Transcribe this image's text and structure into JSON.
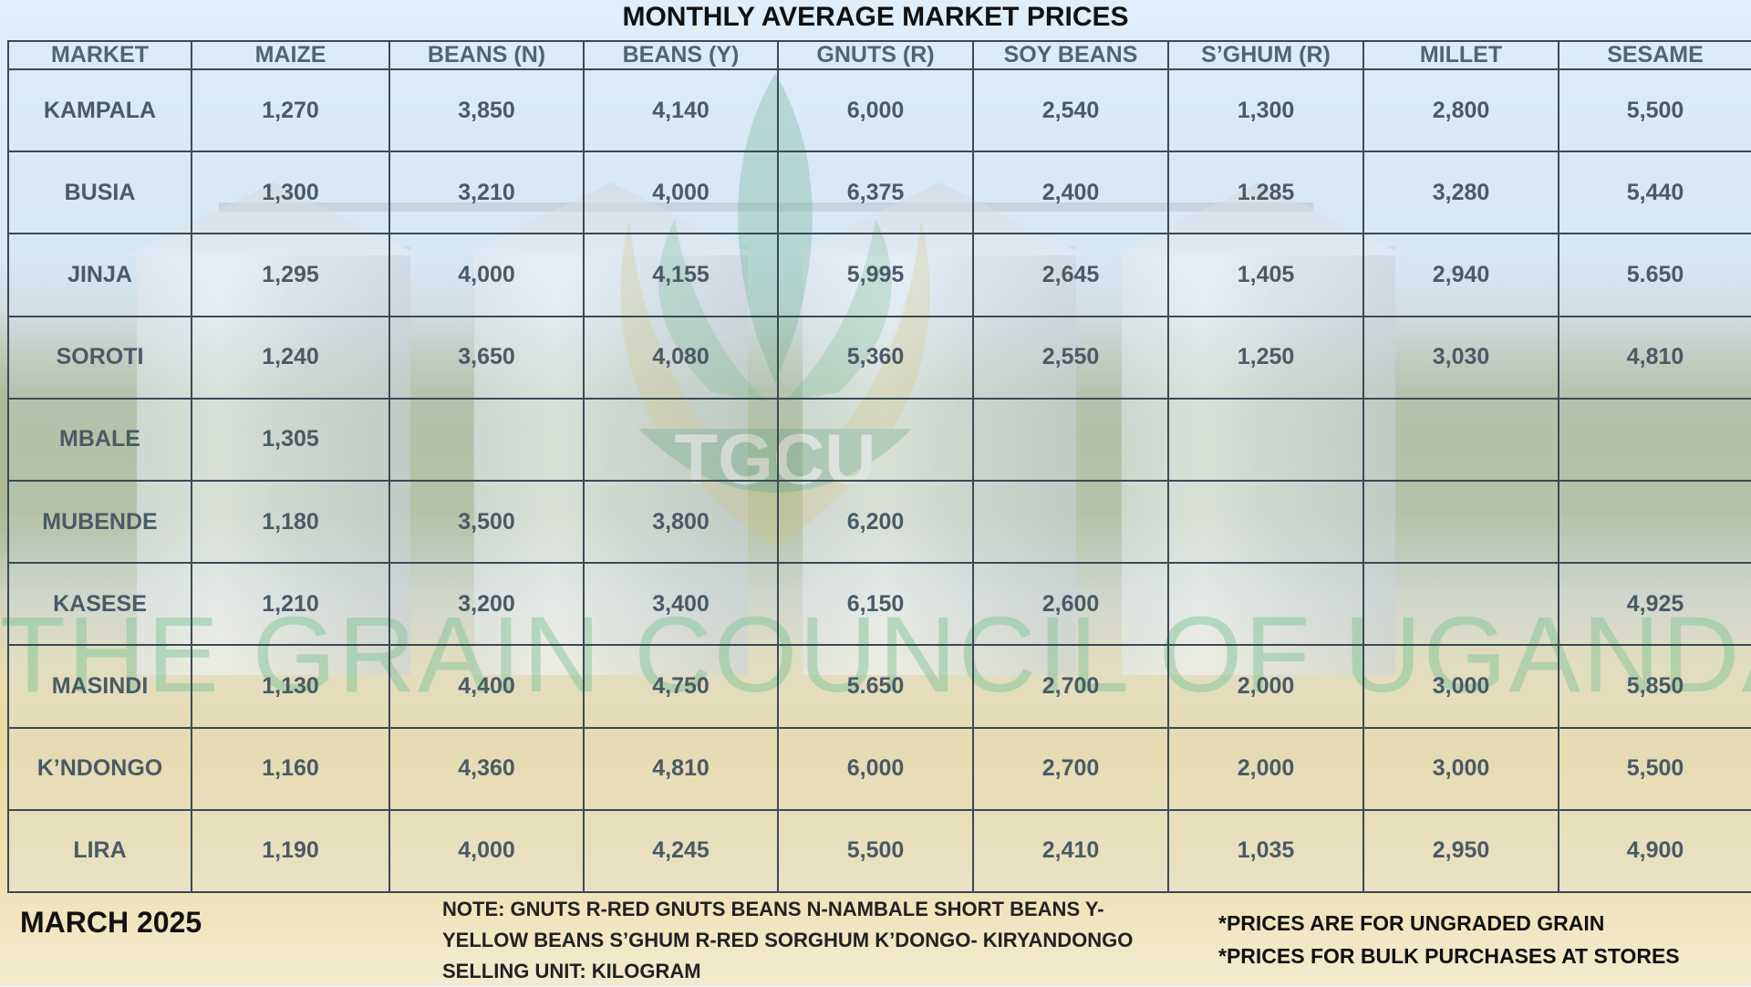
{
  "title": "MONTHLY AVERAGE MARKET PRICES",
  "emblem_text": "TGCU",
  "watermark": "THE GRAIN COUNCIL OF UGANDA",
  "table": {
    "headers": [
      "MARKET",
      "MAIZE",
      "BEANS (N)",
      "BEANS (Y)",
      "GNUTS (R)",
      "SOY BEANS",
      "S’GHUM (R)",
      "MILLET",
      "SESAME"
    ],
    "rows": [
      [
        "KAMPALA",
        "1,270",
        "3,850",
        "4,140",
        "6,000",
        "2,540",
        "1,300",
        "2,800",
        "5,500"
      ],
      [
        "BUSIA",
        "1,300",
        "3,210",
        "4,000",
        "6,375",
        "2,400",
        "1.285",
        "3,280",
        "5,440"
      ],
      [
        "JINJA",
        "1,295",
        "4,000",
        "4,155",
        "5,995",
        "2,645",
        "1,405",
        "2,940",
        "5.650"
      ],
      [
        "SOROTI",
        "1,240",
        "3,650",
        "4,080",
        "5,360",
        "2,550",
        "1,250",
        "3,030",
        "4,810"
      ],
      [
        "MBALE",
        "1,305",
        "",
        "",
        "",
        "",
        "",
        "",
        ""
      ],
      [
        "MUBENDE",
        "1,180",
        "3,500",
        "3,800",
        "6,200",
        "",
        "",
        "",
        ""
      ],
      [
        "KASESE",
        "1,210",
        "3,200",
        "3,400",
        "6,150",
        "2,600",
        "",
        "",
        "4,925"
      ],
      [
        "MASINDI",
        "1,130",
        "4,400",
        "4,750",
        "5.650",
        "2,700",
        "2,000",
        "3,000",
        "5,850"
      ],
      [
        "K’NDONGO",
        "1,160",
        "4,360",
        "4,810",
        "6,000",
        "2,700",
        "2,000",
        "3,000",
        "5,500"
      ],
      [
        "LIRA",
        "1,190",
        "4,000",
        "4,245",
        "5,500",
        "2,410",
        "1,035",
        "2,950",
        "4,900"
      ]
    ]
  },
  "footer": {
    "date": "MARCH 2025",
    "note_lines": [
      "NOTE: GNUTS R-RED GNUTS  BEANS N-NAMBALE SHORT BEANS Y-",
      "YELLOW BEANS  S’GHUM R-RED SORGHUM  K’DONGO- KIRYANDONGO",
      "SELLING UNIT: KILOGRAM"
    ],
    "right_lines": [
      "*PRICES ARE FOR UNGRADED GRAIN",
      "*PRICES FOR BULK PURCHASES AT STORES"
    ]
  },
  "colors": {
    "title": "#111111",
    "cell_text": "#4a5a66",
    "grid": "#3b4a55",
    "watermark": "#5fb978"
  }
}
